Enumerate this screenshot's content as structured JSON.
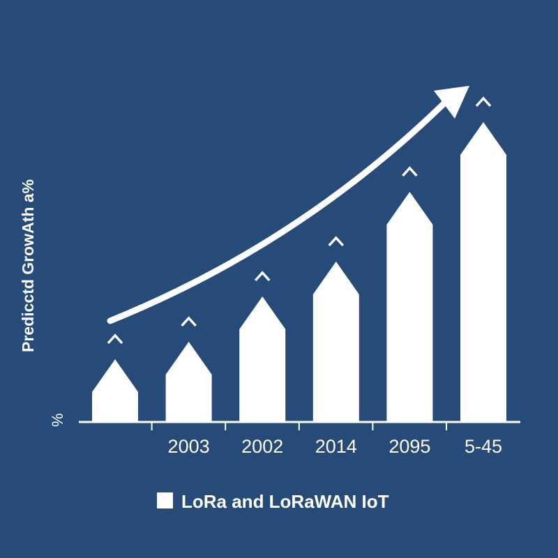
{
  "colors": {
    "background": "#264b79",
    "bars": "#ffffff",
    "text": "#ffffff"
  },
  "chart_data": {
    "type": "bar",
    "title": "",
    "ylabel": "Predicctd GrowAth a%",
    "yaxis_unit_label": "%",
    "categories": [
      "",
      "2003",
      "2002",
      "2014",
      "2095",
      "5-45"
    ],
    "series": [
      {
        "name": "LoRa and LoRaWAN IoT",
        "values": [
          18,
          23,
          36,
          46,
          66,
          86
        ]
      }
    ],
    "ylim": [
      0,
      100
    ],
    "grid": false,
    "legend": "bottom",
    "bar_shape": "arrow-topped with caret marker above",
    "trend_arrow": "curved upward arrow"
  }
}
